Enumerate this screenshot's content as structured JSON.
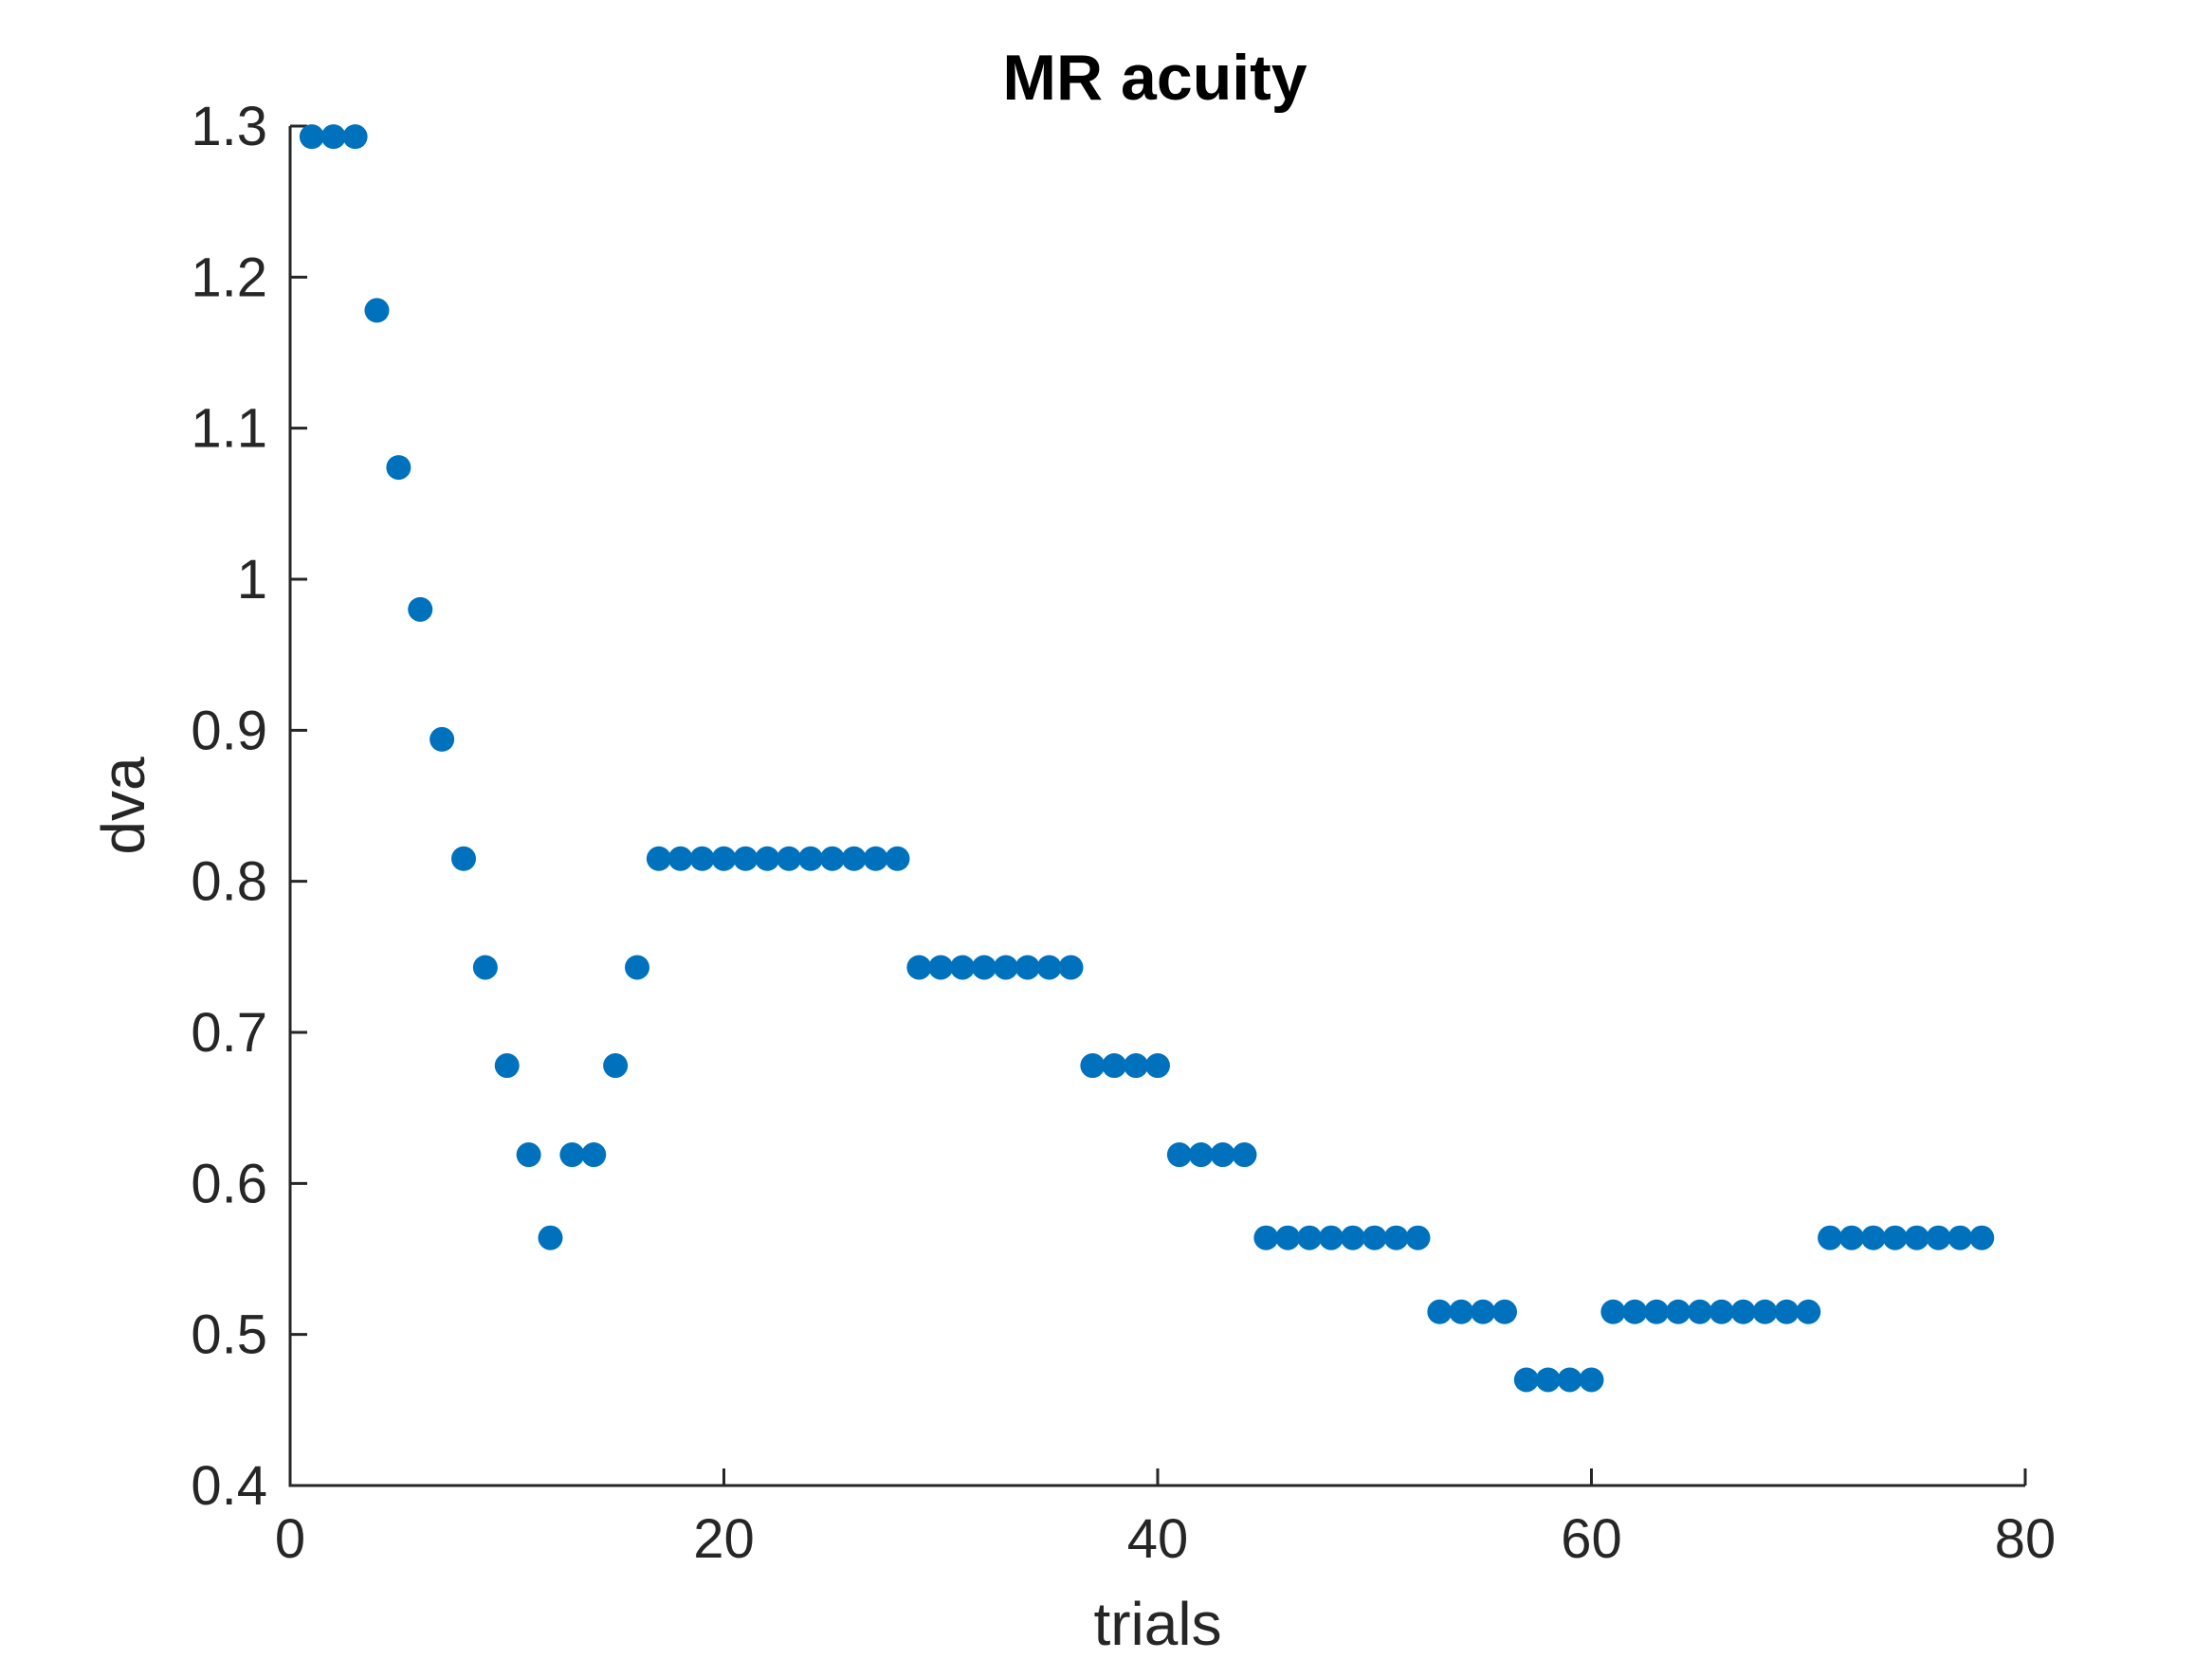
{
  "chart_data": {
    "type": "scatter",
    "title": "MR acuity",
    "xlabel": "trials",
    "ylabel": "dva",
    "xlim": [
      0,
      80
    ],
    "ylim": [
      0.4,
      1.3
    ],
    "xticks": [
      "0",
      "20",
      "40",
      "60",
      "80"
    ],
    "yticks": [
      "0.4",
      "0.5",
      "0.6",
      "0.7",
      "0.8",
      "0.9",
      "1",
      "1.1",
      "1.2",
      "1.3"
    ],
    "grid": false,
    "marker_color": "#0072BD",
    "x": [
      1,
      2,
      3,
      4,
      5,
      6,
      7,
      8,
      9,
      10,
      11,
      12,
      13,
      14,
      15,
      16,
      17,
      18,
      19,
      20,
      21,
      22,
      23,
      24,
      25,
      26,
      27,
      28,
      29,
      30,
      31,
      32,
      33,
      34,
      35,
      36,
      37,
      38,
      39,
      40,
      41,
      42,
      43,
      44,
      45,
      46,
      47,
      48,
      49,
      50,
      51,
      52,
      53,
      54,
      55,
      56,
      57,
      58,
      59,
      60,
      61,
      62,
      63,
      64,
      65,
      66,
      67,
      68,
      69,
      70,
      71,
      72,
      73,
      74,
      75,
      76,
      77,
      78
    ],
    "y": [
      1.293,
      1.293,
      1.293,
      1.178,
      1.074,
      0.98,
      0.894,
      0.815,
      0.743,
      0.678,
      0.619,
      0.564,
      0.619,
      0.619,
      0.678,
      0.743,
      0.815,
      0.815,
      0.815,
      0.815,
      0.815,
      0.815,
      0.815,
      0.815,
      0.815,
      0.815,
      0.815,
      0.815,
      0.743,
      0.743,
      0.743,
      0.743,
      0.743,
      0.743,
      0.743,
      0.743,
      0.678,
      0.678,
      0.678,
      0.678,
      0.619,
      0.619,
      0.619,
      0.619,
      0.564,
      0.564,
      0.564,
      0.564,
      0.564,
      0.564,
      0.564,
      0.564,
      0.515,
      0.515,
      0.515,
      0.515,
      0.47,
      0.47,
      0.47,
      0.47,
      0.515,
      0.515,
      0.515,
      0.515,
      0.515,
      0.515,
      0.515,
      0.515,
      0.515,
      0.515,
      0.564,
      0.564,
      0.564,
      0.564,
      0.564,
      0.564,
      0.564,
      0.564
    ]
  }
}
